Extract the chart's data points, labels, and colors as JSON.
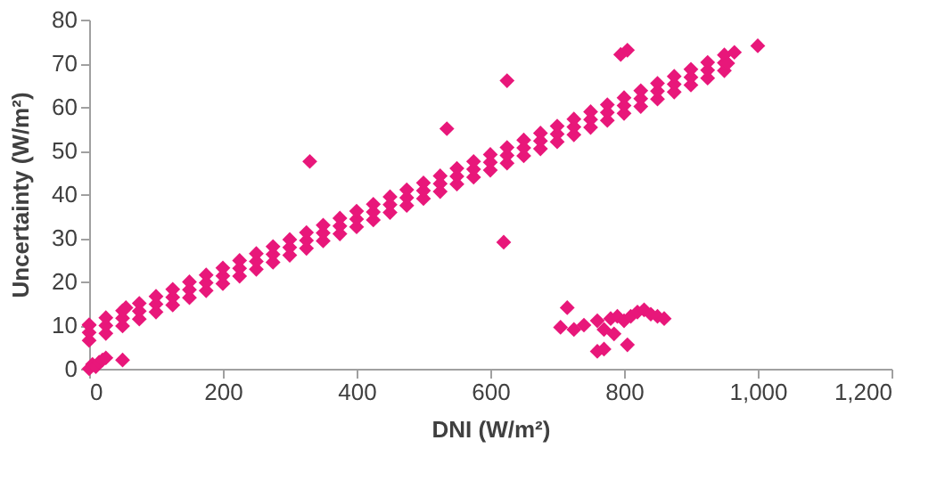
{
  "chart_data": {
    "type": "scatter",
    "xlabel": "DNI (W/m²)",
    "ylabel": "Uncertainty (W/m²)",
    "marker": "diamond",
    "grid": false,
    "legend": false,
    "xlim": [
      0,
      1200
    ],
    "xticks": [
      0,
      200,
      400,
      {
        "value": 600,
        "label": "600"
      },
      {
        "value": 800,
        "label": "800"
      },
      {
        "value": 1000,
        "label": "1,000"
      },
      {
        "value": 1200,
        "label": "1,200"
      }
    ],
    "ylim": [
      0,
      80
    ],
    "yticks": [
      0,
      10,
      20,
      30,
      40,
      50,
      60,
      70,
      80
    ],
    "series": [
      {
        "color": "#e8177a",
        "x": [
          0,
          0,
          0,
          25,
          25,
          25,
          50,
          50,
          50,
          75,
          75,
          75,
          100,
          100,
          100,
          125,
          125,
          125,
          150,
          150,
          150,
          175,
          175,
          175,
          200,
          200,
          200,
          225,
          225,
          225,
          250,
          250,
          250,
          275,
          275,
          275,
          300,
          300,
          300,
          325,
          325,
          325,
          350,
          350,
          350,
          375,
          375,
          375,
          400,
          400,
          400,
          425,
          425,
          425,
          450,
          450,
          450,
          475,
          475,
          475,
          500,
          500,
          500,
          525,
          525,
          525,
          550,
          550,
          550,
          575,
          575,
          575,
          600,
          600,
          600,
          625,
          625,
          625,
          650,
          650,
          650,
          675,
          675,
          675,
          700,
          700,
          700,
          725,
          725,
          725,
          750,
          750,
          750,
          775,
          775,
          775,
          800,
          800,
          800,
          825,
          825,
          825,
          850,
          850,
          850,
          875,
          875,
          875,
          900,
          900,
          900,
          925,
          925,
          925,
          950,
          950,
          950,
          330,
          535,
          625,
          620,
          795,
          805,
          1000,
          965,
          955,
          0,
          50,
          55,
          0,
          5,
          10,
          15,
          20,
          25,
          715,
          705,
          725,
          740,
          760,
          770,
          780,
          785,
          790,
          800,
          810,
          820,
          830,
          840,
          850,
          860,
          760,
          770,
          805
        ],
        "values": [
          6.5,
          8.3,
          10.1,
          8.1,
          9.9,
          11.7,
          9.8,
          11.6,
          13.3,
          11.4,
          13.2,
          15.0,
          13.0,
          14.8,
          16.6,
          14.6,
          16.4,
          18.2,
          16.3,
          18.1,
          19.9,
          17.9,
          19.7,
          21.5,
          19.5,
          21.3,
          23.1,
          21.2,
          23.0,
          24.8,
          22.8,
          24.6,
          26.4,
          24.4,
          26.2,
          28.0,
          26.0,
          27.8,
          29.6,
          27.6,
          29.4,
          31.2,
          29.3,
          31.1,
          32.9,
          30.9,
          32.7,
          34.5,
          32.5,
          34.3,
          36.1,
          34.1,
          35.9,
          37.7,
          35.8,
          37.6,
          39.4,
          37.4,
          39.2,
          41.0,
          39.0,
          40.8,
          42.6,
          40.6,
          42.4,
          44.2,
          42.3,
          44.1,
          45.9,
          43.9,
          45.7,
          47.5,
          45.5,
          47.3,
          49.1,
          47.1,
          48.9,
          50.7,
          48.8,
          50.6,
          52.4,
          50.4,
          52.2,
          54.0,
          52.0,
          53.8,
          55.6,
          53.6,
          55.4,
          57.2,
          55.3,
          57.1,
          58.9,
          56.9,
          58.7,
          60.5,
          58.5,
          60.3,
          62.1,
          60.1,
          61.9,
          63.7,
          61.8,
          63.6,
          65.4,
          63.4,
          65.2,
          67.0,
          65.0,
          66.8,
          68.6,
          66.6,
          68.4,
          70.2,
          68.3,
          70.1,
          71.9,
          47.5,
          55,
          66,
          29,
          72,
          73,
          74,
          72.5,
          70,
          10,
          2,
          14,
          0,
          1,
          0.5,
          1.5,
          2,
          2.5,
          14,
          9.5,
          9,
          10,
          11,
          9,
          11.5,
          8,
          12,
          11,
          12,
          13,
          13.5,
          12.5,
          12,
          11.5,
          4,
          4.5,
          5.5
        ]
      }
    ]
  }
}
